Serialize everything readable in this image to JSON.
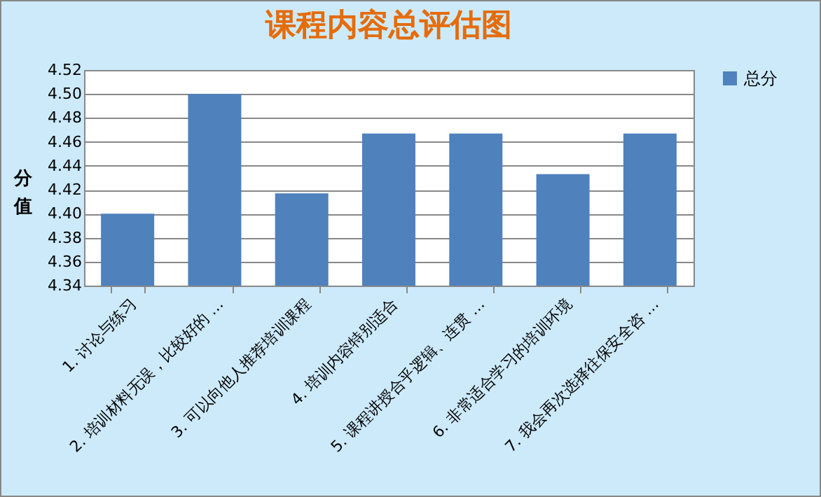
{
  "chart_data": {
    "type": "bar",
    "title": "课程内容总评估图",
    "ylabel": "分值",
    "categories": [
      "1. 讨论与练习",
      "2. 培训材料无误，比较好的 …",
      "3. 可以向他人推荐培训课程",
      "4. 培训内容特别适合",
      "5. 课程讲授合乎逻辑、连贯 …",
      "6. 非常适合学习的培训环境",
      "7. 我会再次选择往保安全咨 …"
    ],
    "series": [
      {
        "name": "总分",
        "color": "#4f81bd",
        "values": [
          4.4,
          4.5,
          4.417,
          4.467,
          4.467,
          4.433,
          4.467
        ]
      }
    ],
    "ylim": [
      4.34,
      4.52
    ],
    "yticks": [
      {
        "value": 4.34,
        "label": "4.34"
      },
      {
        "value": 4.36,
        "label": "4.36"
      },
      {
        "value": 4.38,
        "label": "4.38"
      },
      {
        "value": 4.4,
        "label": "4.40"
      },
      {
        "value": 4.42,
        "label": "4.42"
      },
      {
        "value": 4.44,
        "label": "4.44"
      },
      {
        "value": 4.46,
        "label": "4.46"
      },
      {
        "value": 4.48,
        "label": "4.48"
      },
      {
        "value": 4.5,
        "label": "4.50"
      },
      {
        "value": 4.52,
        "label": "4.52"
      }
    ],
    "grid": "y",
    "legend": "right"
  }
}
